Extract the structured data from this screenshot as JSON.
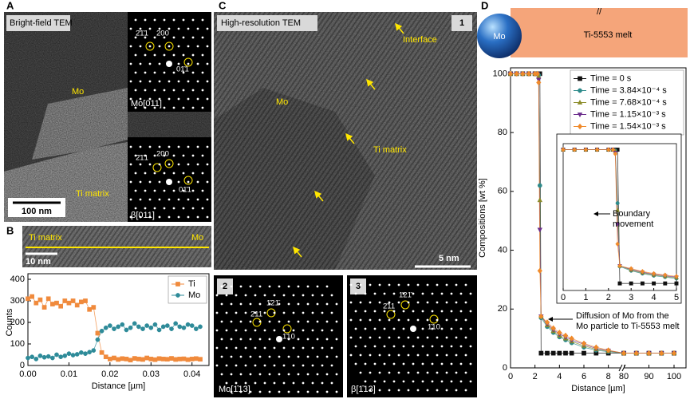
{
  "panels": {
    "A": {
      "letter": "A",
      "label": "Bright-field TEM",
      "phase_top": "Mo",
      "phase_bottom": "Ti matrix",
      "scale_bar": "100 nm",
      "pattern_top": {
        "zone": "Mo[011]",
        "spots": [
          "2̄1̄1",
          "200",
          "01̄1"
        ]
      },
      "pattern_bottom": {
        "zone": "β[011]",
        "spots": [
          "2̄1̄1",
          "200",
          "01̄1"
        ]
      }
    },
    "B": {
      "letter": "B",
      "phase_left": "Ti matrix",
      "phase_right": "Mo",
      "scale_bar": "10 nm"
    },
    "C": {
      "letter": "C",
      "label": "High-resolution TEM",
      "number": "1",
      "annotations": [
        "Interface",
        "Mo",
        "Ti matrix"
      ],
      "scale_bar": "5 nm",
      "pattern_2": {
        "number": "2",
        "zone": "Mo[1̄13]",
        "spots": [
          "2̄11",
          "1̄21̄",
          "1̄10"
        ]
      },
      "pattern_3": {
        "number": "3",
        "zone": "β[1̄13]",
        "spots": [
          "2̄11",
          "1̄21̄",
          "1̄10"
        ]
      }
    },
    "D": {
      "letter": "D",
      "particle": "Mo",
      "melt": "Ti-5553 melt",
      "break_mark": "//"
    }
  },
  "chart_data": [
    {
      "type": "line",
      "x_label": "Distance [µm]",
      "y_label": "Counts",
      "legend": "upper right",
      "x": [
        0,
        0.001,
        0.002,
        0.003,
        0.004,
        0.005,
        0.006,
        0.007,
        0.008,
        0.009,
        0.01,
        0.011,
        0.012,
        0.013,
        0.014,
        0.015,
        0.016,
        0.017,
        0.018,
        0.019,
        0.02,
        0.021,
        0.022,
        0.023,
        0.024,
        0.025,
        0.026,
        0.027,
        0.028,
        0.029,
        0.03,
        0.031,
        0.032,
        0.033,
        0.034,
        0.035,
        0.036,
        0.037,
        0.038,
        0.039,
        0.04,
        0.041,
        0.042
      ],
      "series": [
        {
          "name": "Ti",
          "color": "#f08a3c",
          "marker": "square",
          "values": [
            310,
            320,
            290,
            305,
            270,
            310,
            285,
            290,
            275,
            300,
            290,
            300,
            280,
            295,
            300,
            260,
            270,
            150,
            60,
            40,
            30,
            35,
            28,
            32,
            30,
            25,
            33,
            30,
            28,
            35,
            30,
            27,
            32,
            30,
            29,
            33,
            28,
            30,
            31,
            27,
            30,
            32,
            29
          ]
        },
        {
          "name": "Mo",
          "color": "#2e8b99",
          "marker": "circle",
          "values": [
            35,
            40,
            30,
            45,
            38,
            42,
            35,
            50,
            40,
            45,
            55,
            48,
            52,
            60,
            55,
            62,
            70,
            120,
            160,
            175,
            185,
            170,
            180,
            190,
            165,
            175,
            195,
            180,
            170,
            185,
            175,
            190,
            165,
            180,
            185,
            170,
            195,
            180,
            175,
            190,
            185,
            170,
            180
          ]
        }
      ],
      "xlim": [
        0,
        0.042
      ],
      "xticks": [
        {
          "value": 0,
          "label": "0.00"
        },
        {
          "value": 0.01,
          "label": "0.01"
        },
        {
          "value": 0.02,
          "label": "0.02"
        },
        {
          "value": 0.03,
          "label": "0.03"
        },
        {
          "value": 0.04,
          "label": "0.04"
        }
      ],
      "ylim": [
        0,
        400
      ],
      "yticks": [
        0,
        100,
        200,
        300,
        400
      ]
    },
    {
      "type": "line",
      "x_label": "Distance [µm]",
      "y_label": "Compositions [wt %]",
      "legend": "upper right",
      "x": [
        0,
        0.5,
        1,
        1.5,
        2,
        2.2,
        2.3,
        2.4,
        2.5,
        3,
        3.5,
        4,
        4.5,
        5,
        6,
        7,
        8,
        80,
        85,
        90,
        95,
        100
      ],
      "series": [
        {
          "name": "Time = 0 s",
          "color": "#111111",
          "marker": "square",
          "values": [
            100,
            100,
            100,
            100,
            100,
            100,
            100,
            100,
            5,
            5,
            5,
            5,
            5,
            5,
            5,
            5,
            5,
            5,
            5,
            5,
            5,
            5
          ]
        },
        {
          "name": "Time = 3.84×10⁻⁴ s",
          "color": "#2e8b8b",
          "marker": "circle",
          "values": [
            100,
            100,
            100,
            100,
            100,
            100,
            99.5,
            62,
            17,
            14,
            12,
            10.5,
            9.5,
            8.5,
            7,
            6,
            5.5,
            5,
            5,
            5,
            5,
            5
          ]
        },
        {
          "name": "Time = 7.68×10⁻⁴ s",
          "color": "#8c8c2a",
          "marker": "triangle",
          "values": [
            100,
            100,
            100,
            100,
            100,
            100,
            99,
            57,
            17.5,
            14.5,
            12.5,
            11,
            10,
            9,
            7.5,
            6.3,
            5.7,
            5,
            5,
            5,
            5,
            5
          ]
        },
        {
          "name": "Time = 1.15×10⁻³ s",
          "color": "#6b2d8c",
          "marker": "triangle-down",
          "values": [
            100,
            100,
            100,
            100,
            100,
            100,
            98,
            47,
            17.5,
            15,
            13,
            11.5,
            10.5,
            9.5,
            8,
            6.6,
            5.9,
            5,
            5,
            5,
            5,
            5
          ]
        },
        {
          "name": "Time = 1.54×10⁻³ s",
          "color": "#f08a2a",
          "marker": "diamond",
          "values": [
            100,
            100,
            100,
            100,
            100,
            100,
            97,
            33,
            17.5,
            15.5,
            13.5,
            12,
            11,
            10,
            8.3,
            7,
            6,
            5,
            5,
            5,
            5,
            5
          ]
        }
      ],
      "xlim": [
        0,
        100
      ],
      "xbreak": [
        9,
        80
      ],
      "xticks": [
        0,
        2,
        4,
        6,
        8,
        80,
        90,
        100
      ],
      "ylim": [
        0,
        102
      ],
      "yticks": [
        0,
        20,
        40,
        60,
        80,
        100
      ],
      "annotation": [
        "Diffusion of Mo from the",
        "Mo particle to Ti-5553 melt"
      ],
      "inset": {
        "xlim": [
          0,
          5
        ],
        "xticks": [
          0,
          1,
          2,
          3,
          4,
          5
        ],
        "ylim": [
          0,
          102
        ],
        "annotation": [
          "Boundary",
          "movement"
        ]
      }
    }
  ]
}
